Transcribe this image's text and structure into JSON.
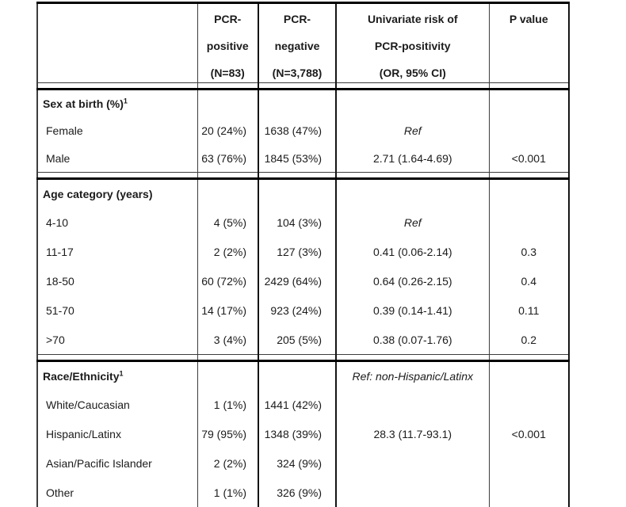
{
  "table": {
    "header": {
      "row_label": "",
      "columns": [
        {
          "name": "pcr_positive",
          "lines": [
            "PCR-",
            "positive",
            "(N=83)"
          ]
        },
        {
          "name": "pcr_negative",
          "lines": [
            "PCR-",
            "negative",
            "(N=3,788)"
          ]
        },
        {
          "name": "univariate_risk",
          "lines": [
            "Univariate risk of",
            "PCR-positivity",
            "(OR, 95% CI)"
          ]
        },
        {
          "name": "p_value",
          "lines": [
            "P value"
          ]
        }
      ]
    },
    "sections": [
      {
        "title": "Sex at birth (%)",
        "superscript": "1",
        "title_risk": "",
        "rows": [
          {
            "label": "Female",
            "pos": "20 (24%)",
            "neg": "1638 (47%)",
            "risk": "Ref",
            "p": ""
          },
          {
            "label": "Male",
            "pos": "63 (76%)",
            "neg": "1845 (53%)",
            "risk": "2.71 (1.64-4.69)",
            "p": "<0.001"
          }
        ]
      },
      {
        "title": "Age category (years)",
        "superscript": "",
        "title_risk": "",
        "rows": [
          {
            "label": "4-10",
            "pos": "4 (5%)",
            "neg": "104 (3%)",
            "risk": "Ref",
            "p": ""
          },
          {
            "label": "11-17",
            "pos": "2 (2%)",
            "neg": "127 (3%)",
            "risk": "0.41 (0.06-2.14)",
            "p": "0.3"
          },
          {
            "label": "18-50",
            "pos": "60 (72%)",
            "neg": "2429 (64%)",
            "risk": "0.64 (0.26-2.15)",
            "p": "0.4"
          },
          {
            "label": "51-70",
            "pos": "14 (17%)",
            "neg": "923 (24%)",
            "risk": "0.39 (0.14-1.41)",
            "p": "0.11"
          },
          {
            "label": ">70",
            "pos": "3 (4%)",
            "neg": "205 (5%)",
            "risk": "0.38 (0.07-1.76)",
            "p": "0.2"
          }
        ]
      },
      {
        "title": "Race/Ethnicity",
        "superscript": "1",
        "title_risk": "Ref: non-Hispanic/Latinx",
        "rows": [
          {
            "label": "White/Caucasian",
            "pos": "1 (1%)",
            "neg": "1441 (42%)",
            "risk": "",
            "p": ""
          },
          {
            "label": "Hispanic/Latinx",
            "pos": "79 (95%)",
            "neg": "1348 (39%)",
            "risk": "28.3 (11.7-93.1)",
            "p": "<0.001"
          },
          {
            "label": "Asian/Pacific Islander",
            "pos": "2 (2%)",
            "neg": "324 (9%)",
            "risk": "",
            "p": ""
          },
          {
            "label": "Other",
            "pos": "1 (1%)",
            "neg": "326 (9%)",
            "risk": "",
            "p": ""
          }
        ]
      }
    ]
  }
}
